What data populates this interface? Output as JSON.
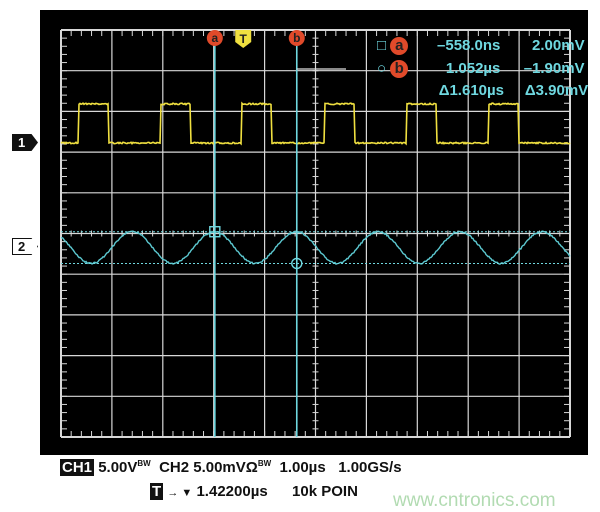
{
  "chart_data": {
    "type": "line",
    "x_unit": "µs",
    "xlim": [
      -3.58,
      6.42
    ],
    "grid": true,
    "grid_divisions": [
      10,
      10
    ],
    "series": [
      {
        "name": "1",
        "color": "#f0e040",
        "volts_per_div": 5.0,
        "unit": "V",
        "shape": "pulse",
        "low": 0,
        "high": 4.8,
        "pulse_width_us": 0.6,
        "rising_edges_us": [
          -3.24,
          -1.63,
          -0.04,
          1.59,
          3.2,
          4.81
        ]
      },
      {
        "name": "2",
        "color": "#5cc8d0",
        "mv_per_div": 5.0,
        "unit": "mV",
        "shape": "sine",
        "amplitude_mv": 1.95,
        "offset_mv": 0.05,
        "period_us": 1.61,
        "peak_at_us": -0.57
      }
    ],
    "cursors": {
      "a": {
        "time": "–558.0ns",
        "value": "2.00mV",
        "t_us": -0.558,
        "v_mv": 2.0
      },
      "b": {
        "time": "1.052µs",
        "value": "–1.90mV",
        "t_us": 1.052,
        "v_mv": -1.9
      },
      "delta_time": "Δ1.610µs",
      "delta_value": "Δ3.90mV"
    },
    "trigger_marker": "T"
  },
  "markers": {
    "ch1": "1",
    "ch2": "2",
    "a": "a",
    "b": "b"
  },
  "status": {
    "ch1_label": "CH1",
    "ch1_scale": "5.00V",
    "bw1": "BW",
    "ch2": "CH2 5.00mVΩ",
    "bw2": "BW",
    "timebase": "1.00µs",
    "sample_rate": "1.00GS/s",
    "trig_label": "T",
    "trig_arrow": "→ ▼",
    "trig_pos": "1.42200µs",
    "points": "10k POIN"
  },
  "watermark": "www.cntronics.com"
}
